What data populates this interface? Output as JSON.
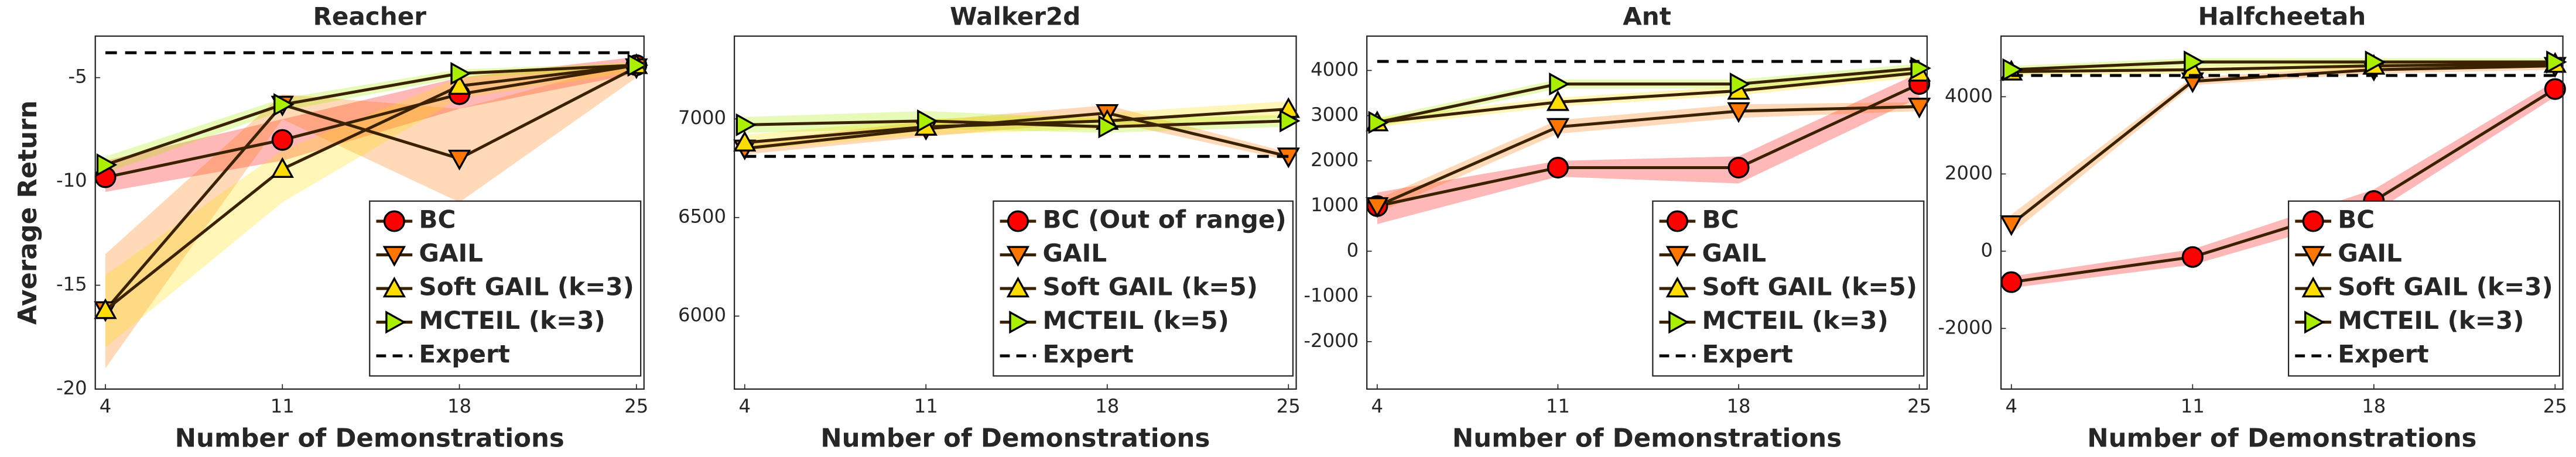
{
  "chart_data": [
    {
      "type": "line",
      "title": "Reacher",
      "xlabel": "Number of Demonstrations",
      "ylabel": "Average Return",
      "x": [
        4,
        11,
        18,
        25
      ],
      "xlim": [
        3.6,
        25.3
      ],
      "xticks": [
        4,
        11,
        18,
        25
      ],
      "ylim": [
        -20,
        -3
      ],
      "yticks": [
        -5,
        -10,
        -15,
        -20
      ],
      "legend": "lower right",
      "series": [
        {
          "name": "BC",
          "color": "#ff0000",
          "marker": "o",
          "values": [
            -9.8,
            -8.0,
            -5.8,
            -4.4
          ],
          "lower": [
            -10.5,
            -9,
            -6.5,
            -4.8
          ],
          "upper": [
            -9,
            -7,
            -5,
            -4
          ]
        },
        {
          "name": "GAIL",
          "color": "#ff7700",
          "marker": "v",
          "values": [
            -16.2,
            -6.3,
            -8.9,
            -4.5
          ],
          "lower": [
            -19,
            -7,
            -11,
            -5
          ],
          "upper": [
            -13.5,
            -5.8,
            -6.5,
            -4.2
          ]
        },
        {
          "name": "Soft GAIL (k=3)",
          "color": "#ffdd00",
          "marker": "^",
          "values": [
            -16.2,
            -9.4,
            -5.4,
            -4.4
          ],
          "lower": [
            -18,
            -11,
            -6,
            -4.7
          ],
          "upper": [
            -14.5,
            -8.5,
            -5,
            -4.2
          ]
        },
        {
          "name": "MCTEIL (k=3)",
          "color": "#aaee00",
          "marker": ">",
          "values": [
            -9.2,
            -6.3,
            -4.8,
            -4.4
          ],
          "lower": [
            -9.6,
            -6.6,
            -5,
            -4.6
          ],
          "upper": [
            -8.8,
            -6,
            -4.6,
            -4.3
          ]
        },
        {
          "name": "Expert",
          "color": "#000000",
          "dashed": true,
          "values": [
            -3.8,
            -3.8,
            -3.8,
            -3.8
          ]
        }
      ]
    },
    {
      "type": "line",
      "title": "Walker2d",
      "xlabel": "Number of Demonstrations",
      "x": [
        4,
        11,
        18,
        25
      ],
      "xlim": [
        3.6,
        25.3
      ],
      "xticks": [
        4,
        11,
        18,
        25
      ],
      "ylim": [
        5630,
        7420
      ],
      "yticks": [
        6000,
        6500,
        7000
      ],
      "legend": "lower right",
      "series": [
        {
          "name": "BC (Out of range)",
          "color": "#ff0000",
          "marker": "o",
          "values": [
            null,
            null,
            null,
            null
          ]
        },
        {
          "name": "GAIL",
          "color": "#ff7700",
          "marker": "v",
          "values": [
            6850,
            6950,
            7030,
            6810
          ],
          "lower": [
            6820,
            6910,
            6990,
            6790
          ],
          "upper": [
            6880,
            6990,
            7070,
            6830
          ]
        },
        {
          "name": "Soft GAIL (k=5)",
          "color": "#ffdd00",
          "marker": "^",
          "values": [
            6880,
            6960,
            6990,
            7050
          ],
          "lower": [
            6840,
            6920,
            6950,
            7010
          ],
          "upper": [
            6920,
            7000,
            7030,
            7090
          ]
        },
        {
          "name": "MCTEIL (k=5)",
          "color": "#aaee00",
          "marker": ">",
          "values": [
            6970,
            6990,
            6960,
            6990
          ],
          "lower": [
            6930,
            6950,
            6930,
            6960
          ],
          "upper": [
            7010,
            7040,
            7000,
            7020
          ]
        },
        {
          "name": "Expert",
          "color": "#000000",
          "dashed": true,
          "values": [
            6810,
            6810,
            6810,
            6810
          ]
        }
      ]
    },
    {
      "type": "line",
      "title": "Ant",
      "xlabel": "Number of Demonstrations",
      "x": [
        4,
        11,
        18,
        25
      ],
      "xlim": [
        3.6,
        25.3
      ],
      "xticks": [
        4,
        11,
        18,
        25
      ],
      "ylim": [
        -3050,
        4760
      ],
      "yticks": [
        -2000,
        -1000,
        0,
        1000,
        2000,
        3000,
        4000
      ],
      "legend": "lower right",
      "series": [
        {
          "name": "BC",
          "color": "#ff0000",
          "marker": "o",
          "values": [
            1000,
            1850,
            1850,
            3700
          ],
          "lower": [
            600,
            1650,
            1500,
            3400
          ],
          "upper": [
            1300,
            2000,
            2100,
            3950
          ]
        },
        {
          "name": "GAIL",
          "color": "#ff7700",
          "marker": "v",
          "values": [
            1000,
            2750,
            3100,
            3200
          ],
          "lower": [
            850,
            2600,
            2950,
            3100
          ],
          "upper": [
            1150,
            2900,
            3250,
            3300
          ]
        },
        {
          "name": "Soft GAIL (k=5)",
          "color": "#ffdd00",
          "marker": "^",
          "values": [
            2850,
            3300,
            3550,
            3950
          ],
          "lower": [
            2750,
            3200,
            3450,
            3850
          ],
          "upper": [
            2950,
            3400,
            3650,
            4050
          ]
        },
        {
          "name": "MCTEIL (k=3)",
          "color": "#aaee00",
          "marker": ">",
          "values": [
            2850,
            3700,
            3700,
            4050
          ],
          "lower": [
            2750,
            3600,
            3600,
            3950
          ],
          "upper": [
            2950,
            3800,
            3800,
            4150
          ]
        },
        {
          "name": "Expert",
          "color": "#000000",
          "dashed": true,
          "values": [
            4200,
            4200,
            4200,
            4200
          ]
        }
      ]
    },
    {
      "type": "line",
      "title": "Halfcheetah",
      "xlabel": "Number of Demonstrations",
      "x": [
        4,
        11,
        18,
        25
      ],
      "xlim": [
        3.6,
        25.3
      ],
      "xticks": [
        4,
        11,
        18,
        25
      ],
      "ylim": [
        -3570,
        5570
      ],
      "yticks": [
        -2000,
        0,
        2000,
        4000
      ],
      "legend": "lower right",
      "series": [
        {
          "name": "BC",
          "color": "#ff0000",
          "marker": "o",
          "values": [
            -800,
            -150,
            1300,
            4200
          ],
          "lower": [
            -950,
            -350,
            1000,
            4000
          ],
          "upper": [
            -650,
            50,
            1600,
            4400
          ]
        },
        {
          "name": "GAIL",
          "color": "#ff7700",
          "marker": "v",
          "values": [
            700,
            4400,
            4700,
            4800
          ],
          "lower": [
            450,
            4300,
            4600,
            4700
          ],
          "upper": [
            950,
            4500,
            4800,
            4900
          ]
        },
        {
          "name": "Soft GAIL (k=3)",
          "color": "#ffdd00",
          "marker": "^",
          "values": [
            4650,
            4700,
            4800,
            4850
          ],
          "lower": [
            4550,
            4600,
            4700,
            4750
          ],
          "upper": [
            4750,
            4800,
            4900,
            4950
          ]
        },
        {
          "name": "MCTEIL (k=3)",
          "color": "#aaee00",
          "marker": ">",
          "values": [
            4700,
            4900,
            4900,
            4900
          ],
          "lower": [
            4600,
            4800,
            4800,
            4800
          ],
          "upper": [
            4800,
            5000,
            5000,
            5000
          ]
        },
        {
          "name": "Expert",
          "color": "#000000",
          "dashed": true,
          "values": [
            4550,
            4550,
            4550,
            4550
          ]
        }
      ]
    }
  ]
}
